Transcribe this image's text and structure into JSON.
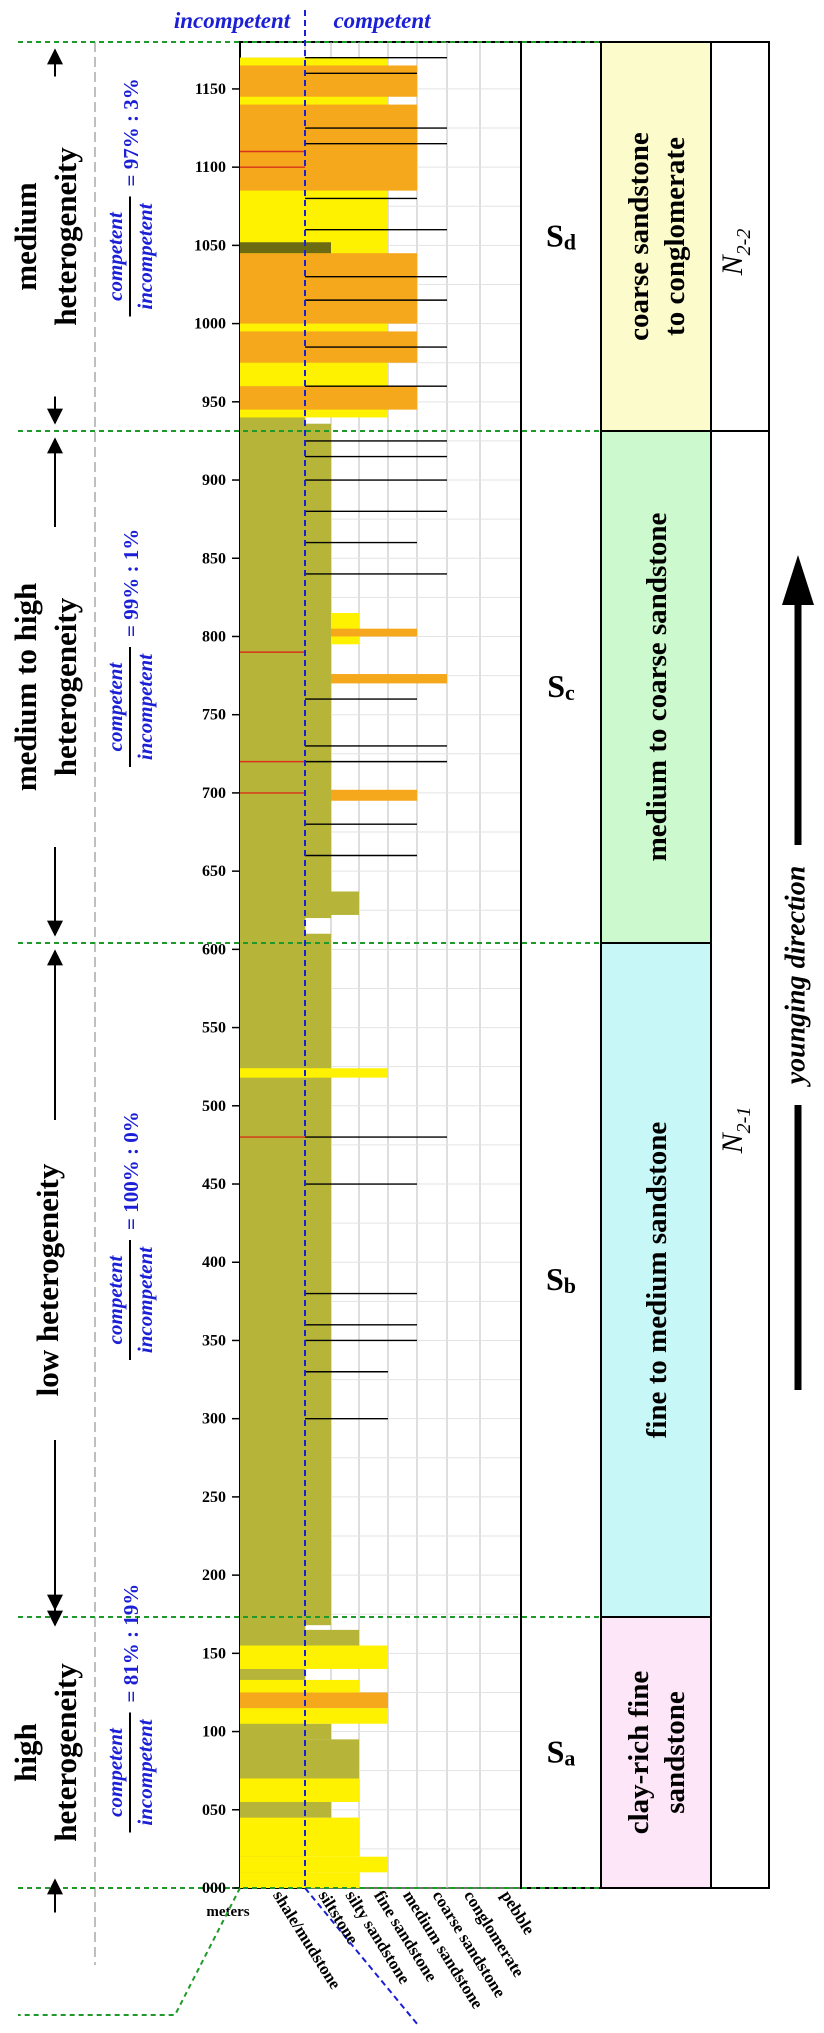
{
  "header": {
    "incompetent": "incompetent",
    "competent": "competent"
  },
  "axis": {
    "unit": "meters",
    "ticks": [
      "000",
      "050",
      "100",
      "150",
      "200",
      "250",
      "300",
      "350",
      "400",
      "450",
      "500",
      "550",
      "600",
      "650",
      "700",
      "750",
      "800",
      "850",
      "900",
      "950",
      "1000",
      "1050",
      "1100",
      "1150"
    ]
  },
  "lithology_labels": [
    "shale/mudstone",
    "siltstone",
    "silty sandstone",
    "fine sandstone",
    "medium sandstone",
    "coarse sandstone",
    "conglomerate",
    "pebble"
  ],
  "units": [
    {
      "id": "Sa",
      "label_main": "S",
      "label_sub": "a",
      "lithology": [
        "clay-rich fine",
        "sandstone"
      ],
      "lith_color": "#fce6f8",
      "heterogeneity": [
        "high",
        "heterogeneity"
      ],
      "ratio_num": "competent",
      "ratio_den": "incompetent",
      "ratio_value": "= 81% : 19%"
    },
    {
      "id": "Sb",
      "label_main": "S",
      "label_sub": "b",
      "lithology": [
        "fine to medium sandstone"
      ],
      "lith_color": "#c7f7f6",
      "heterogeneity": [
        "low heterogeneity"
      ],
      "ratio_num": "competent",
      "ratio_den": "incompetent",
      "ratio_value": "= 100% : 0%"
    },
    {
      "id": "Sc",
      "label_main": "S",
      "label_sub": "c",
      "lithology": [
        "medium to coarse sandstone"
      ],
      "lith_color": "#ccf9cd",
      "heterogeneity": [
        "medium to high",
        "heterogeneity"
      ],
      "ratio_num": "competent",
      "ratio_den": "incompetent",
      "ratio_value": "= 99% : 1%"
    },
    {
      "id": "Sd",
      "label_main": "S",
      "label_sub": "d",
      "lithology": [
        "coarse sandstone",
        "to conglomerate"
      ],
      "lith_color": "#fcfbcb",
      "heterogeneity": [
        "medium",
        "heterogeneity"
      ],
      "ratio_num": "competent",
      "ratio_den": "incompetent",
      "ratio_value": "= 97% : 3%"
    }
  ],
  "formations": {
    "upper": {
      "main": "N",
      "sub": "2-2"
    },
    "lower": {
      "main": "N",
      "sub": "2-1"
    }
  },
  "younging": "younging direction",
  "colors": {
    "shale": "#b7b43a",
    "fine_yellow": "#fff200",
    "coarse_orange": "#f5a81b",
    "red_layer": "#d9331b",
    "blue": "#1b1fd6",
    "green_dash": "#1f9a2a"
  }
}
